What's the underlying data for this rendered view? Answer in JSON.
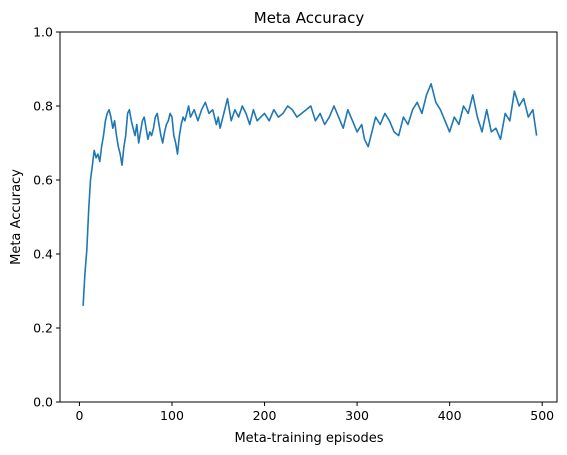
{
  "chart_data": {
    "type": "line",
    "title": "Meta Accuracy",
    "xlabel": "Meta-training episodes",
    "ylabel": "Meta Accuracy",
    "xlim": [
      -21,
      516
    ],
    "ylim": [
      0.0,
      1.0
    ],
    "xticks": [
      0,
      100,
      200,
      300,
      400,
      500
    ],
    "yticks": [
      0.0,
      0.2,
      0.4,
      0.6,
      0.8,
      1.0
    ],
    "xtick_labels": [
      "0",
      "100",
      "200",
      "300",
      "400",
      "500"
    ],
    "ytick_labels": [
      "0.0",
      "0.2",
      "0.4",
      "0.6",
      "0.8",
      "1.0"
    ],
    "grid": false,
    "colors": {
      "line": "#1f77b4"
    },
    "series": [
      {
        "x": [
          4,
          6,
          8,
          10,
          12,
          14,
          16,
          18,
          20,
          22,
          24,
          26,
          28,
          30,
          32,
          34,
          36,
          38,
          40,
          42,
          44,
          46,
          48,
          50,
          52,
          54,
          56,
          58,
          60,
          62,
          64,
          66,
          68,
          70,
          72,
          74,
          76,
          78,
          80,
          82,
          84,
          86,
          88,
          90,
          92,
          94,
          96,
          98,
          100,
          102,
          104,
          106,
          108,
          110,
          112,
          114,
          116,
          118,
          120,
          124,
          128,
          132,
          136,
          140,
          144,
          148,
          150,
          152,
          156,
          160,
          164,
          168,
          172,
          176,
          180,
          184,
          188,
          192,
          196,
          200,
          205,
          210,
          215,
          220,
          225,
          230,
          235,
          240,
          245,
          250,
          255,
          260,
          265,
          270,
          275,
          280,
          285,
          290,
          295,
          300,
          305,
          308,
          312,
          316,
          320,
          325,
          330,
          335,
          340,
          345,
          350,
          355,
          360,
          365,
          370,
          375,
          380,
          385,
          390,
          395,
          400,
          405,
          410,
          415,
          420,
          425,
          430,
          435,
          440,
          445,
          450,
          455,
          460,
          465,
          470,
          475,
          480,
          485,
          490,
          494
        ],
        "y": [
          0.26,
          0.35,
          0.41,
          0.52,
          0.6,
          0.64,
          0.68,
          0.66,
          0.67,
          0.65,
          0.69,
          0.72,
          0.76,
          0.78,
          0.79,
          0.77,
          0.74,
          0.76,
          0.72,
          0.69,
          0.67,
          0.64,
          0.69,
          0.72,
          0.78,
          0.79,
          0.76,
          0.74,
          0.72,
          0.75,
          0.7,
          0.73,
          0.76,
          0.77,
          0.74,
          0.71,
          0.73,
          0.72,
          0.74,
          0.77,
          0.78,
          0.75,
          0.72,
          0.7,
          0.73,
          0.75,
          0.76,
          0.78,
          0.77,
          0.72,
          0.7,
          0.67,
          0.72,
          0.75,
          0.77,
          0.76,
          0.78,
          0.8,
          0.77,
          0.79,
          0.76,
          0.79,
          0.81,
          0.78,
          0.79,
          0.75,
          0.77,
          0.74,
          0.78,
          0.82,
          0.76,
          0.79,
          0.77,
          0.8,
          0.78,
          0.75,
          0.79,
          0.76,
          0.77,
          0.78,
          0.76,
          0.79,
          0.77,
          0.78,
          0.8,
          0.79,
          0.77,
          0.78,
          0.79,
          0.8,
          0.76,
          0.78,
          0.75,
          0.77,
          0.8,
          0.77,
          0.74,
          0.79,
          0.76,
          0.73,
          0.75,
          0.71,
          0.69,
          0.73,
          0.77,
          0.75,
          0.78,
          0.76,
          0.73,
          0.72,
          0.77,
          0.75,
          0.79,
          0.81,
          0.78,
          0.83,
          0.86,
          0.81,
          0.79,
          0.76,
          0.73,
          0.77,
          0.75,
          0.8,
          0.78,
          0.83,
          0.77,
          0.73,
          0.79,
          0.73,
          0.74,
          0.71,
          0.78,
          0.76,
          0.84,
          0.8,
          0.82,
          0.77,
          0.79,
          0.72
        ]
      }
    ]
  }
}
